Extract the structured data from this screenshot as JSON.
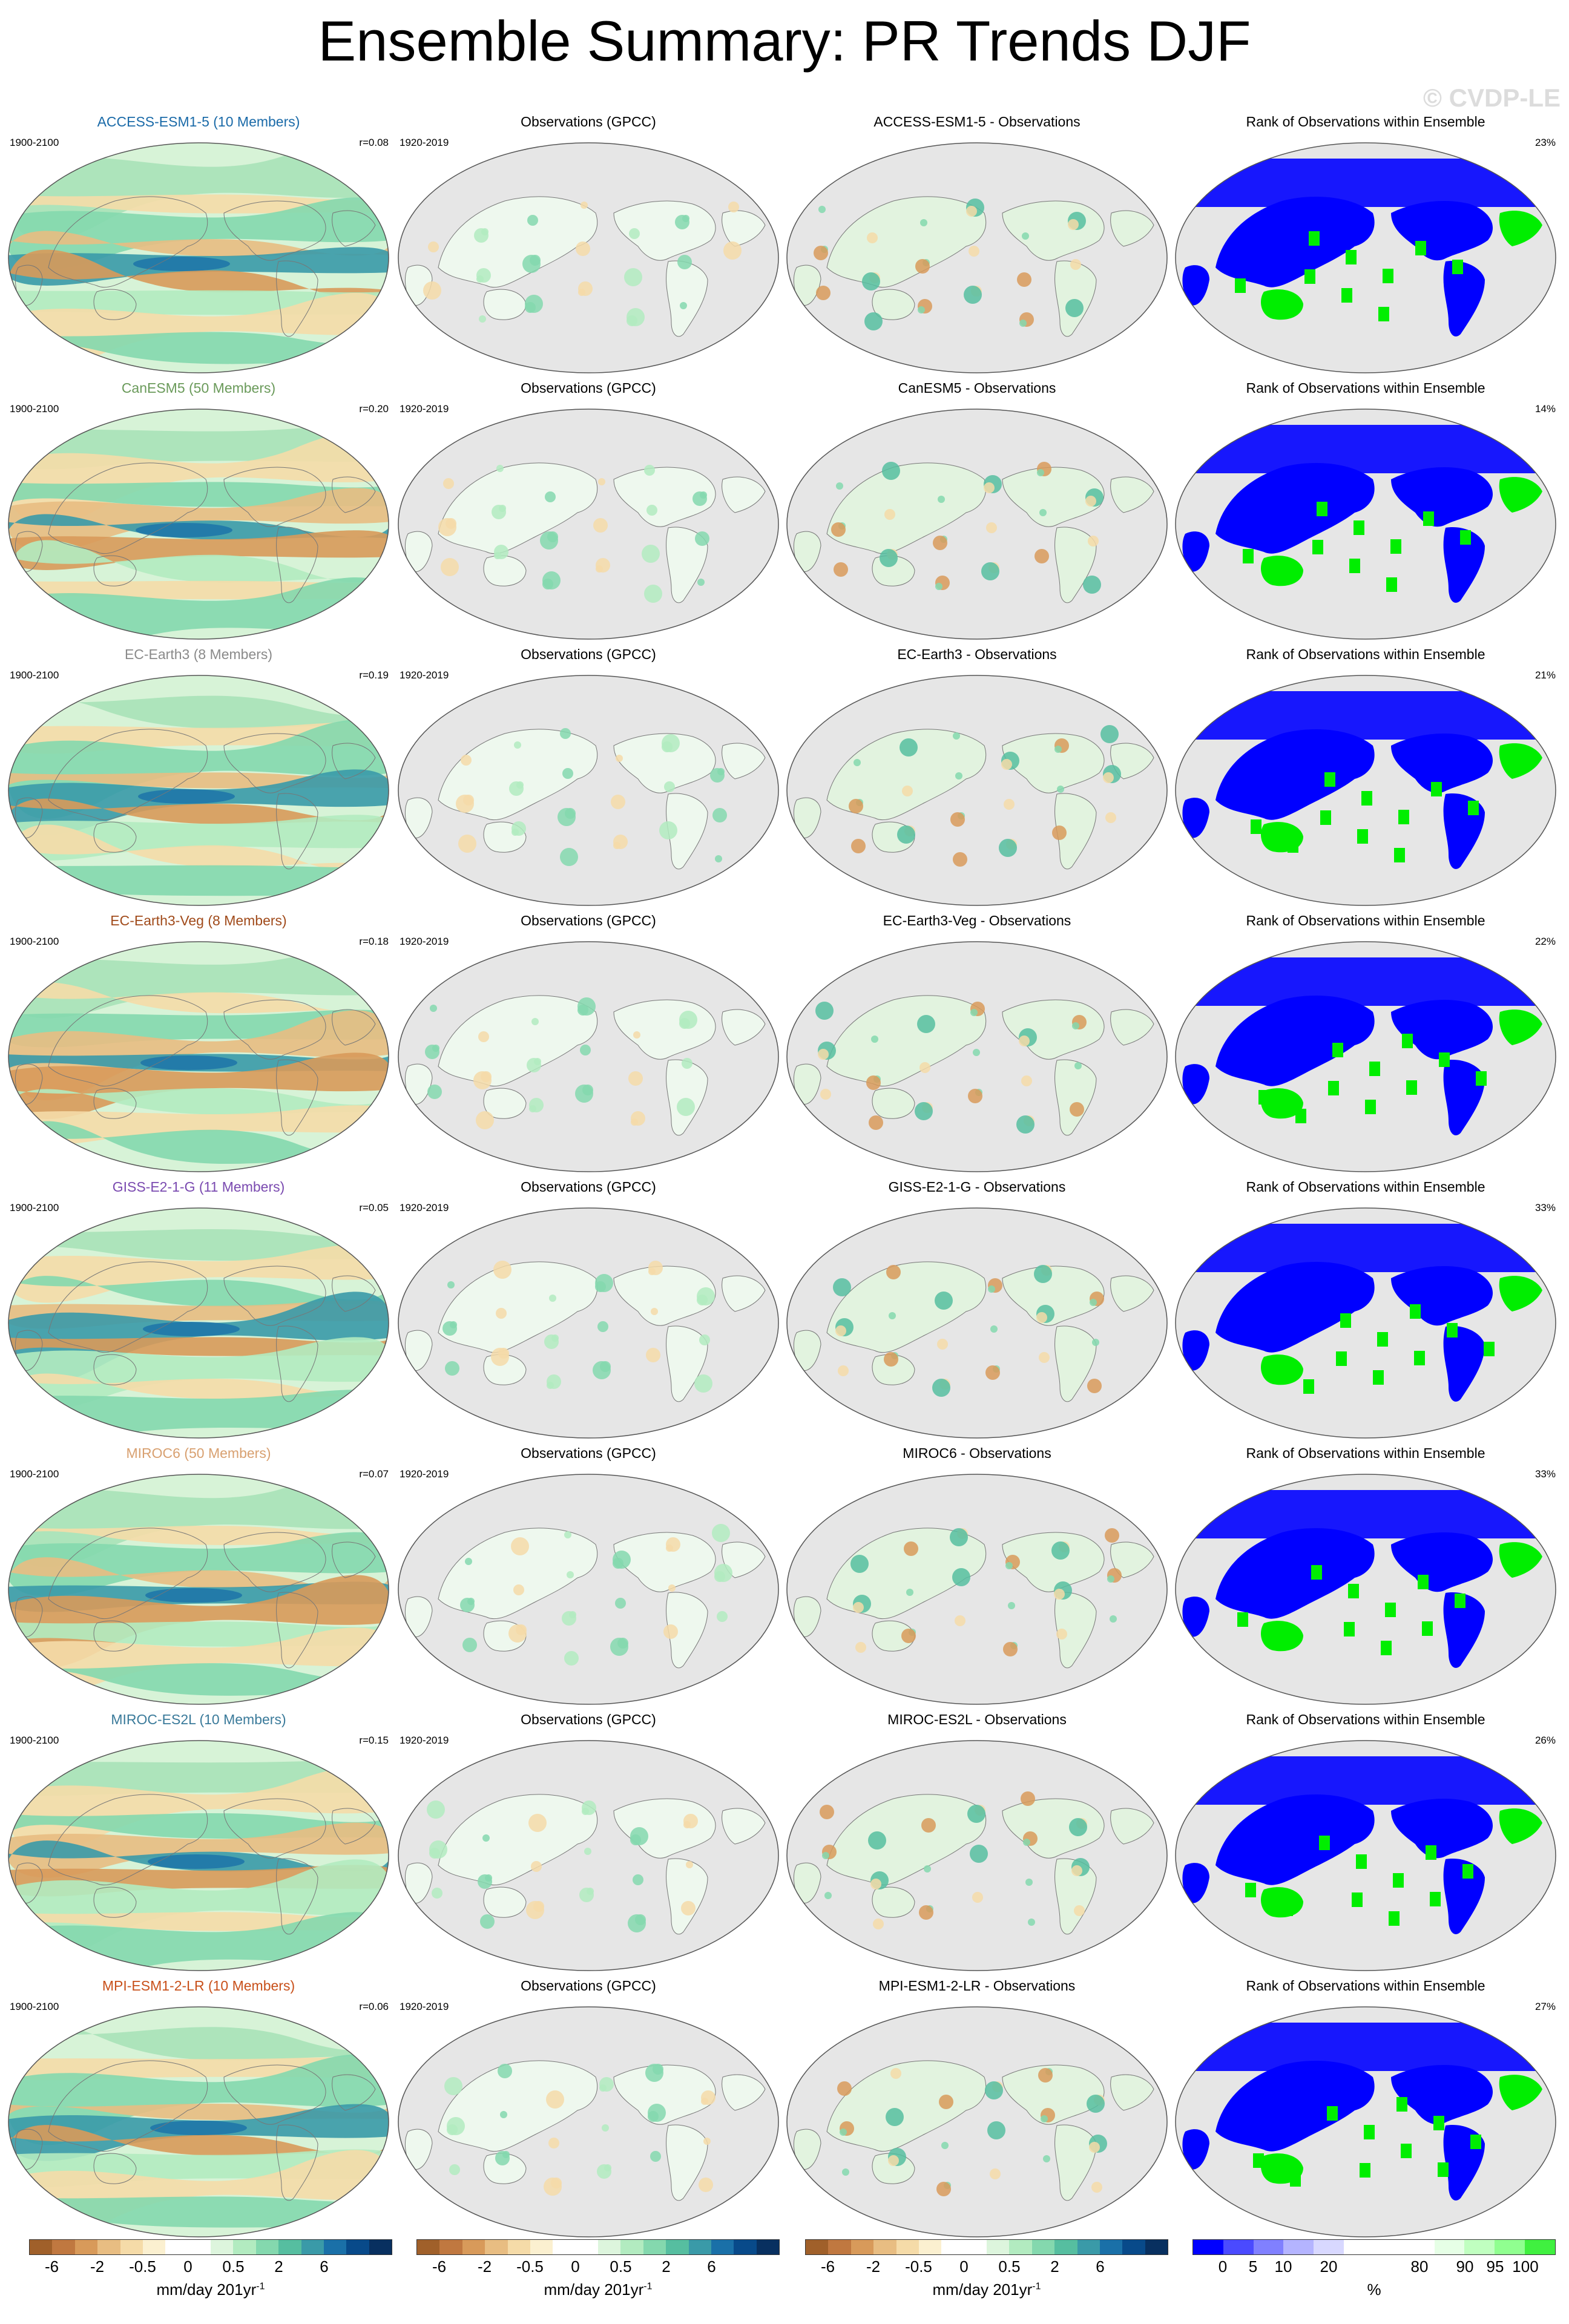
{
  "title": "Ensemble Summary: PR Trends DJF",
  "watermark": "© CVDP-LE",
  "rows": [
    {
      "model": "ACCESS-ESM1-5 (10 Members)",
      "model_color": "#1a6aa8",
      "period": "1900-2100",
      "r": "r=0.08",
      "obs_title": "Observations (GPCC)",
      "obs_period": "1920-2019",
      "diff_title": "ACCESS-ESM1-5 - Observations",
      "rank_title": "Rank of Observations within Ensemble",
      "rank_pct": "23%"
    },
    {
      "model": "CanESM5 (50 Members)",
      "model_color": "#6a9a5a",
      "period": "1900-2100",
      "r": "r=0.20",
      "obs_title": "Observations (GPCC)",
      "obs_period": "1920-2019",
      "diff_title": "CanESM5 - Observations",
      "rank_title": "Rank of Observations within Ensemble",
      "rank_pct": "14%"
    },
    {
      "model": "EC-Earth3 (8 Members)",
      "model_color": "#8a8a8a",
      "period": "1900-2100",
      "r": "r=0.19",
      "obs_title": "Observations (GPCC)",
      "obs_period": "1920-2019",
      "diff_title": "EC-Earth3 - Observations",
      "rank_title": "Rank of Observations within Ensemble",
      "rank_pct": "21%"
    },
    {
      "model": "EC-Earth3-Veg (8 Members)",
      "model_color": "#a04a1a",
      "period": "1900-2100",
      "r": "r=0.18",
      "obs_title": "Observations (GPCC)",
      "obs_period": "1920-2019",
      "diff_title": "EC-Earth3-Veg - Observations",
      "rank_title": "Rank of Observations within Ensemble",
      "rank_pct": "22%"
    },
    {
      "model": "GISS-E2-1-G (11 Members)",
      "model_color": "#7a4ab0",
      "period": "1900-2100",
      "r": "r=0.05",
      "obs_title": "Observations (GPCC)",
      "obs_period": "1920-2019",
      "diff_title": "GISS-E2-1-G - Observations",
      "rank_title": "Rank of Observations within Ensemble",
      "rank_pct": "33%"
    },
    {
      "model": "MIROC6 (50 Members)",
      "model_color": "#d8a070",
      "period": "1900-2100",
      "r": "r=0.07",
      "obs_title": "Observations (GPCC)",
      "obs_period": "1920-2019",
      "diff_title": "MIROC6 - Observations",
      "rank_title": "Rank of Observations within Ensemble",
      "rank_pct": "33%"
    },
    {
      "model": "MIROC-ES2L (10 Members)",
      "model_color": "#3a7a9a",
      "period": "1900-2100",
      "r": "r=0.15",
      "obs_title": "Observations (GPCC)",
      "obs_period": "1920-2019",
      "diff_title": "MIROC-ES2L - Observations",
      "rank_title": "Rank of Observations within Ensemble",
      "rank_pct": "26%"
    },
    {
      "model": "MPI-ESM1-2-LR (10 Members)",
      "model_color": "#c8501a",
      "period": "1900-2100",
      "r": "r=0.06",
      "obs_title": "Observations (GPCC)",
      "obs_period": "1920-2019",
      "diff_title": "MPI-ESM1-2-LR - Observations",
      "rank_title": "Rank of Observations within Ensemble",
      "rank_pct": "27%"
    }
  ],
  "colorbars": {
    "pr": {
      "colors": [
        "#a0602a",
        "#c07840",
        "#d89a5a",
        "#e8bd82",
        "#f5dba8",
        "#fbf0d0",
        "#ffffff",
        "#ffffff",
        "#ddf5dd",
        "#b2ebc0",
        "#84d8ae",
        "#56bea0",
        "#3a9aa8",
        "#1a70a8",
        "#084a8a",
        "#083060"
      ],
      "labels": [
        "-6",
        "-2",
        "-0.5",
        "0",
        "0.5",
        "2",
        "6"
      ],
      "unit": "mm/day 201yr",
      "unit_sup": "-1"
    },
    "rank": {
      "colors": [
        "#0000ff",
        "#4a4aff",
        "#8080ff",
        "#b4b4ff",
        "#d8d8ff",
        "#ffffff",
        "#ffffff",
        "#ffffff",
        "#e6ffe6",
        "#c0ffc0",
        "#90ff90",
        "#40f040"
      ],
      "labels": [
        "0",
        "5",
        "10",
        "20",
        "80",
        "90",
        "95",
        "100"
      ],
      "unit": "%"
    }
  },
  "colors": {
    "land_mask": "#e6e6e6",
    "rank_low": "#0000ff",
    "rank_high": "#00ee00"
  }
}
